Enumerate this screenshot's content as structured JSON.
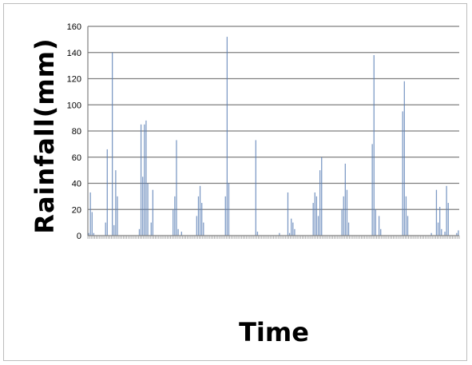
{
  "chart_data": {
    "type": "bar",
    "title": "",
    "xlabel": "Time",
    "ylabel": "Rainfall(mm)",
    "ylim": [
      0,
      160
    ],
    "yticks": [
      0,
      20,
      40,
      60,
      80,
      100,
      120,
      140,
      160
    ],
    "grid": "horizontal",
    "legend": "none",
    "bar_color": "#5b7fb5",
    "values": [
      2,
      33,
      18,
      2,
      0,
      0,
      0,
      0,
      0,
      0,
      10,
      66,
      0,
      0,
      140,
      8,
      50,
      30,
      0,
      0,
      0,
      0,
      0,
      0,
      0,
      0,
      0,
      0,
      0,
      0,
      5,
      85,
      45,
      85,
      88,
      40,
      0,
      10,
      35,
      0,
      0,
      0,
      0,
      0,
      0,
      0,
      0,
      0,
      0,
      0,
      20,
      30,
      73,
      5,
      0,
      3,
      0,
      0,
      0,
      0,
      0,
      0,
      0,
      0,
      15,
      30,
      38,
      25,
      10,
      0,
      0,
      0,
      0,
      0,
      0,
      0,
      0,
      0,
      0,
      0,
      0,
      30,
      152,
      40,
      0,
      0,
      0,
      0,
      0,
      0,
      0,
      0,
      0,
      0,
      0,
      0,
      0,
      0,
      0,
      73,
      3,
      0,
      0,
      0,
      0,
      0,
      0,
      0,
      0,
      0,
      0,
      0,
      0,
      2,
      0,
      0,
      0,
      0,
      33,
      2,
      13,
      10,
      5,
      0,
      0,
      0,
      0,
      0,
      0,
      0,
      0,
      0,
      0,
      25,
      33,
      30,
      15,
      50,
      60,
      0,
      0,
      0,
      0,
      0,
      0,
      0,
      0,
      0,
      0,
      0,
      20,
      30,
      55,
      35,
      10,
      0,
      0,
      0,
      0,
      0,
      0,
      0,
      0,
      0,
      0,
      0,
      0,
      0,
      70,
      138,
      20,
      0,
      15,
      5,
      0,
      0,
      0,
      0,
      0,
      0,
      0,
      0,
      0,
      0,
      0,
      0,
      95,
      118,
      30,
      15,
      0,
      0,
      0,
      0,
      0,
      0,
      0,
      0,
      0,
      0,
      0,
      0,
      0,
      2,
      0,
      0,
      35,
      10,
      22,
      5,
      0,
      3,
      38,
      25,
      0,
      0,
      0,
      0,
      2,
      4
    ]
  }
}
